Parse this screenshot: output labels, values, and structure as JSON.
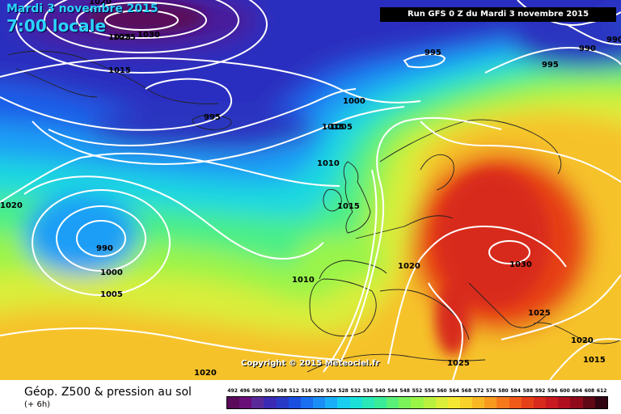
{
  "header": {
    "date": "Mardi 3 novembre 2015",
    "time": "7:00 locale",
    "run": "Run GFS 0 Z du Mardi 3 novembre 2015"
  },
  "footer": {
    "title": "Géop. Z500 & pression au sol",
    "lead": "(+ 6h)",
    "copyright": "Copyright © 2015 Meteociel.fr"
  },
  "legend": {
    "values": [
      "492",
      "496",
      "500",
      "504",
      "508",
      "512",
      "516",
      "520",
      "524",
      "528",
      "532",
      "536",
      "540",
      "544",
      "548",
      "552",
      "556",
      "560",
      "564",
      "568",
      "572",
      "576",
      "580",
      "584",
      "588",
      "592",
      "596",
      "600",
      "604",
      "608",
      "612"
    ],
    "colors": [
      "#5a0a5a",
      "#6a0e7a",
      "#5a2a9a",
      "#3a2ab4",
      "#2a3ac8",
      "#1a4ee0",
      "#1a6ef0",
      "#1a8ef6",
      "#1aaef8",
      "#1acef0",
      "#1ae0d8",
      "#2ae8b8",
      "#3aec98",
      "#5af078",
      "#7af458",
      "#9af448",
      "#baf040",
      "#daee3a",
      "#f4e832",
      "#f8d22a",
      "#f8b824",
      "#f89a20",
      "#f67a1c",
      "#f05a18",
      "#e64018",
      "#d82a1c",
      "#c81a20",
      "#b01020",
      "#900a1c",
      "#600816",
      "#300410"
    ]
  },
  "isobars": [
    "1020",
    "1025",
    "1030",
    "1015",
    "995",
    "1000",
    "1005",
    "990",
    "1010",
    "1020",
    "1015",
    "1025",
    "1020",
    "1025",
    "1030",
    "1020",
    "1015",
    "995",
    "995",
    "990",
    "1000",
    "1005",
    "1010",
    "990",
    "1020",
    "1015",
    "1025",
    "1030"
  ]
}
